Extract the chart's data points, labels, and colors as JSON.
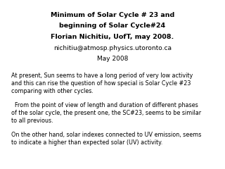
{
  "title_line1": "Minimum of Solar Cycle # 23 and",
  "title_line2": "beginning of Solar Cycle#24",
  "title_line3": "Florian Nichitiu, UofT, may 2008.",
  "title_line4": "nichitiu@atmosp.physics.utoronto.ca",
  "title_line5": "May 2008",
  "para1": "At present, Sun seems to have a long period of very low activity\nand this can rise the question of how special is Solar Cycle #23\ncomparing with other cycles.",
  "para2": "  From the point of view of length and duration of different phases\nof the solar cycle, the present one, the SC#23, seems to be similar\nto all previous.",
  "para3": "On the other hand, solar indexes connected to UV emission, seems\nto indicate a higher than expected solar (UV) activity.",
  "bg_color": "#ffffff",
  "text_color": "#000000",
  "title_fontsize": 6.8,
  "body_fontsize": 5.8
}
